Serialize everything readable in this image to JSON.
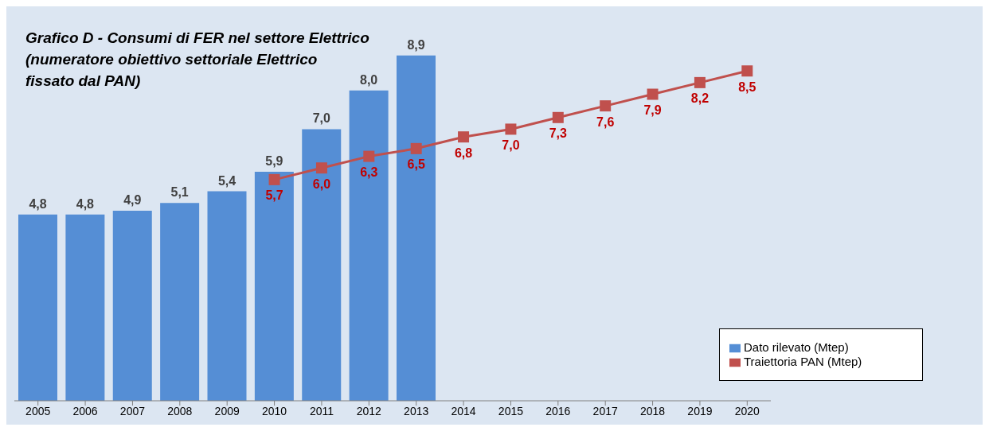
{
  "chart_data": {
    "type": "bar",
    "title": "Grafico D - Consumi di FER nel settore Elettrico\n(numeratore obiettivo settoriale Elettrico\nfissato dal PAN)",
    "categories": [
      "2005",
      "2006",
      "2007",
      "2008",
      "2009",
      "2010",
      "2011",
      "2012",
      "2013",
      "2014",
      "2015",
      "2016",
      "2017",
      "2018",
      "2019",
      "2020"
    ],
    "series": [
      {
        "name": "Dato rilevato (Mtep)",
        "color": "#558ed5",
        "values": [
          4.8,
          4.8,
          4.9,
          5.1,
          5.4,
          5.9,
          7.0,
          8.0,
          8.9,
          null,
          null,
          null,
          null,
          null,
          null,
          null
        ],
        "value_labels": [
          "4,8",
          "4,8",
          "4,9",
          "5,1",
          "5,4",
          "5,9",
          "7,0",
          "8,0",
          "8,9",
          null,
          null,
          null,
          null,
          null,
          null,
          null
        ]
      },
      {
        "name": "Traiettoria PAN (Mtep)",
        "type": "line",
        "color": "#c0504d",
        "marker": "square",
        "values": [
          null,
          null,
          null,
          null,
          null,
          5.7,
          6.0,
          6.3,
          6.5,
          6.8,
          7.0,
          7.3,
          7.6,
          7.9,
          8.2,
          8.5
        ],
        "value_labels": [
          null,
          null,
          null,
          null,
          null,
          "5,7",
          "6,0",
          "6,3",
          "6,5",
          "6,8",
          "7,0",
          "7,3",
          "7,6",
          "7,9",
          "8,2",
          "8,5"
        ]
      }
    ],
    "legend": "bottom right",
    "tick_labels": "x"
  }
}
